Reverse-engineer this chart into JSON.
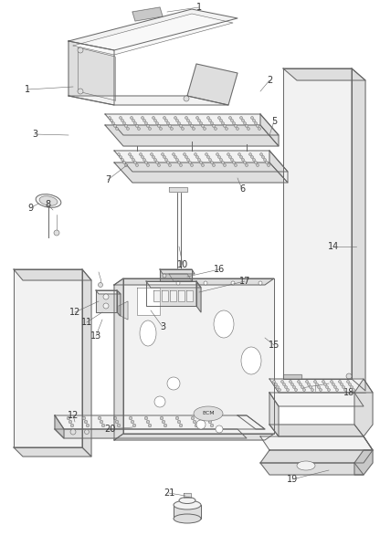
{
  "bg_color": "#ffffff",
  "line_color": "#666666",
  "label_color": "#333333",
  "label_fontsize": 7.0,
  "lw": 0.7,
  "lw_thin": 0.4,
  "parts_color": "#f2f2f2",
  "shadow_color": "#dedede",
  "dark_color": "#c8c8c8"
}
